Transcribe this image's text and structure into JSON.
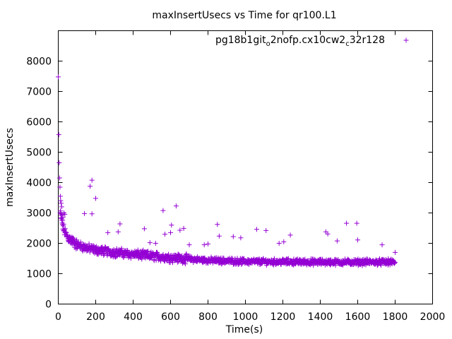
{
  "chart_data": {
    "type": "scatter",
    "title": "maxInsertUsecs vs Time for qr100.L1",
    "xlabel": "Time(s)",
    "ylabel": "maxInsertUsecs",
    "xlim": [
      0,
      2000
    ],
    "ylim": [
      0,
      9000
    ],
    "x_ticks": [
      0,
      200,
      400,
      600,
      800,
      1000,
      1200,
      1400,
      1600,
      1800,
      2000
    ],
    "y_ticks": [
      0,
      1000,
      2000,
      3000,
      4000,
      5000,
      6000,
      7000,
      8000
    ],
    "grid": false,
    "legend_position": "top-right",
    "marker": "+",
    "series": [
      {
        "name_parts": [
          {
            "text": "pg18b1git"
          },
          {
            "text": "o",
            "sub": true
          },
          {
            "text": "2nofp.cx10cw2"
          },
          {
            "text": "c",
            "sub": true
          },
          {
            "text": "32r128"
          }
        ],
        "color": "#9400D3",
        "trend": [
          [
            0,
            3500
          ],
          [
            10,
            3000
          ],
          [
            20,
            2700
          ],
          [
            30,
            2450
          ],
          [
            50,
            2200
          ],
          [
            80,
            2050
          ],
          [
            100,
            1950
          ],
          [
            150,
            1850
          ],
          [
            200,
            1780
          ],
          [
            300,
            1700
          ],
          [
            400,
            1640
          ],
          [
            500,
            1580
          ],
          [
            600,
            1530
          ],
          [
            700,
            1480
          ],
          [
            800,
            1440
          ],
          [
            900,
            1420
          ],
          [
            1000,
            1400
          ],
          [
            1200,
            1390
          ],
          [
            1400,
            1380
          ],
          [
            1600,
            1380
          ],
          [
            1800,
            1380
          ]
        ],
        "points": [
          [
            0,
            7480
          ],
          [
            3,
            5580
          ],
          [
            5,
            4650
          ],
          [
            7,
            4150
          ],
          [
            9,
            3850
          ],
          [
            11,
            3550
          ],
          [
            13,
            3400
          ],
          [
            15,
            3320
          ],
          [
            18,
            3200
          ],
          [
            20,
            2950
          ],
          [
            25,
            2850
          ],
          [
            30,
            3000
          ],
          [
            35,
            2950
          ],
          [
            140,
            2980
          ],
          [
            170,
            3880
          ],
          [
            180,
            4080
          ],
          [
            180,
            2970
          ],
          [
            200,
            3480
          ],
          [
            265,
            2350
          ],
          [
            320,
            2380
          ],
          [
            330,
            2640
          ],
          [
            460,
            2480
          ],
          [
            490,
            2020
          ],
          [
            520,
            2000
          ],
          [
            560,
            3080
          ],
          [
            570,
            2300
          ],
          [
            600,
            2350
          ],
          [
            605,
            2600
          ],
          [
            630,
            3230
          ],
          [
            650,
            2430
          ],
          [
            670,
            2490
          ],
          [
            700,
            1950
          ],
          [
            780,
            1950
          ],
          [
            800,
            1980
          ],
          [
            850,
            2620
          ],
          [
            860,
            2240
          ],
          [
            935,
            2220
          ],
          [
            975,
            2180
          ],
          [
            1060,
            2460
          ],
          [
            1110,
            2420
          ],
          [
            1180,
            2000
          ],
          [
            1205,
            2050
          ],
          [
            1240,
            2270
          ],
          [
            1430,
            2380
          ],
          [
            1440,
            2310
          ],
          [
            1490,
            2080
          ],
          [
            1540,
            2660
          ],
          [
            1595,
            2660
          ],
          [
            1600,
            2110
          ],
          [
            1730,
            1950
          ],
          [
            1800,
            1700
          ]
        ]
      }
    ]
  }
}
